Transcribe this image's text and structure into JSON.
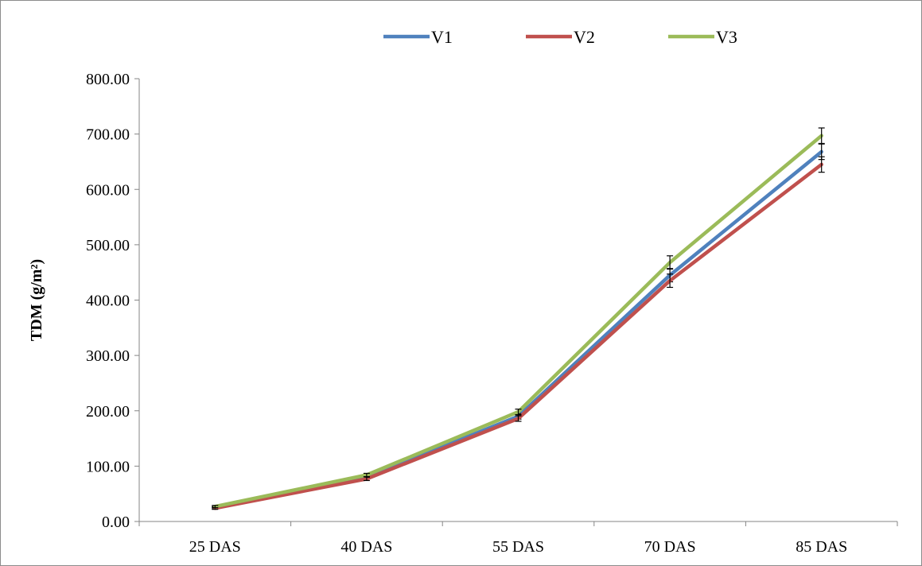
{
  "chart_data": {
    "type": "line",
    "categories": [
      "25 DAS",
      "40 DAS",
      "55 DAS",
      "70 DAS",
      "85 DAS"
    ],
    "series": [
      {
        "name": "V1",
        "color": "#4F81BD",
        "values": [
          25,
          80,
          190,
          445,
          668
        ],
        "error": [
          2,
          3,
          5,
          12,
          14
        ]
      },
      {
        "name": "V2",
        "color": "#C0504D",
        "values": [
          24,
          77,
          186,
          435,
          645
        ],
        "error": [
          2,
          3,
          5,
          12,
          14
        ]
      },
      {
        "name": "V3",
        "color": "#9BBB59",
        "values": [
          27,
          84,
          198,
          468,
          697
        ],
        "error": [
          2,
          3,
          5,
          12,
          14
        ]
      }
    ],
    "xlabel": "",
    "ylabel": "TDM (g/m²)",
    "ylim": [
      0,
      800
    ],
    "yticks": [
      "0.00",
      "100.00",
      "200.00",
      "300.00",
      "400.00",
      "500.00",
      "600.00",
      "700.00",
      "800.00"
    ],
    "grid": false,
    "legend_position": "top"
  }
}
